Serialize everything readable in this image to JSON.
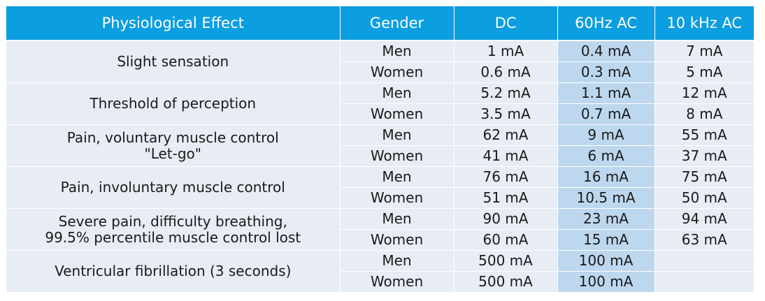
{
  "headers": {
    "effect": "Physiological Effect",
    "gender": "Gender",
    "dc": "DC",
    "ac60": "60Hz AC",
    "ac10k": "10 kHz AC"
  },
  "rows": [
    {
      "effect_lines": [
        "Slight sensation"
      ],
      "men": {
        "gender": "Men",
        "dc": "1 mA",
        "ac60": "0.4 mA",
        "ac10k": "7 mA"
      },
      "women": {
        "gender": "Women",
        "dc": "0.6 mA",
        "ac60": "0.3 mA",
        "ac10k": "5 mA"
      }
    },
    {
      "effect_lines": [
        "Threshold of perception"
      ],
      "men": {
        "gender": "Men",
        "dc": "5.2 mA",
        "ac60": "1.1 mA",
        "ac10k": "12 mA"
      },
      "women": {
        "gender": "Women",
        "dc": "3.5 mA",
        "ac60": "0.7 mA",
        "ac10k": "8 mA"
      }
    },
    {
      "effect_lines": [
        "Pain,  voluntary muscle control",
        "\"Let-go\""
      ],
      "men": {
        "gender": "Men",
        "dc": "62 mA",
        "ac60": "9 mA",
        "ac10k": "55 mA"
      },
      "women": {
        "gender": "Women",
        "dc": "41 mA",
        "ac60": "6 mA",
        "ac10k": "37 mA"
      }
    },
    {
      "effect_lines": [
        "Pain, involuntary muscle control"
      ],
      "men": {
        "gender": "Men",
        "dc": "76 mA",
        "ac60": "16 mA",
        "ac10k": "75 mA"
      },
      "women": {
        "gender": "Women",
        "dc": "51 mA",
        "ac60": "10.5 mA",
        "ac10k": "50 mA"
      }
    },
    {
      "effect_lines": [
        "Severe pain, difficulty breathing,",
        "99.5% percentile  muscle control lost"
      ],
      "men": {
        "gender": "Men",
        "dc": "90 mA",
        "ac60": "23 mA",
        "ac10k": "94 mA"
      },
      "women": {
        "gender": "Women",
        "dc": "60 mA",
        "ac60": "15 mA",
        "ac10k": "63 mA"
      }
    },
    {
      "effect_lines": [
        "Ventricular fibrillation (3 seconds)"
      ],
      "men": {
        "gender": "Men",
        "dc": "500 mA",
        "ac60": "100 mA",
        "ac10k": ""
      },
      "women": {
        "gender": "Women",
        "dc": "500 mA",
        "ac60": "100 mA",
        "ac10k": ""
      }
    }
  ],
  "colors": {
    "header": "#0b9ee0",
    "row": "#e8ecf5",
    "highlight_col": "#bdd7ee"
  }
}
